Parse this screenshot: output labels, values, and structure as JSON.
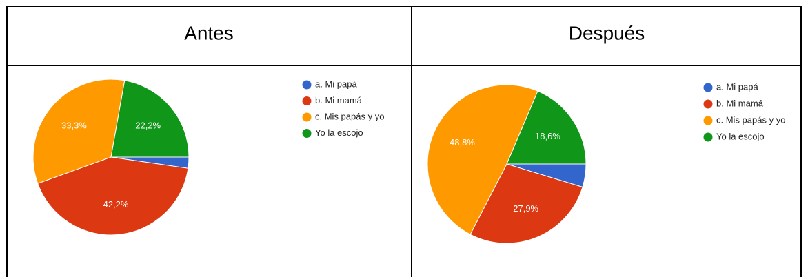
{
  "chart_data": [
    {
      "type": "pie",
      "title": "Antes",
      "categories": [
        "a. Mi papá",
        "b. Mi mamá",
        "c. Mis papás y yo",
        "Yo la escojo"
      ],
      "values": [
        2.3,
        42.2,
        33.3,
        22.2
      ],
      "value_labels": [
        null,
        "42,2%",
        "33,3%",
        "22,2%"
      ],
      "colors": [
        "#3366cc",
        "#dc3912",
        "#ff9900",
        "#109618"
      ],
      "legend": "right"
    },
    {
      "type": "pie",
      "title": "Después",
      "categories": [
        "a. Mi papá",
        "b. Mi mamá",
        "c. Mis papás y yo",
        "Yo la escojo"
      ],
      "values": [
        4.7,
        27.9,
        48.8,
        18.6
      ],
      "value_labels": [
        null,
        "27,9%",
        "48,8%",
        "18,6%"
      ],
      "colors": [
        "#3366cc",
        "#dc3912",
        "#ff9900",
        "#109618"
      ],
      "legend": "right"
    }
  ]
}
